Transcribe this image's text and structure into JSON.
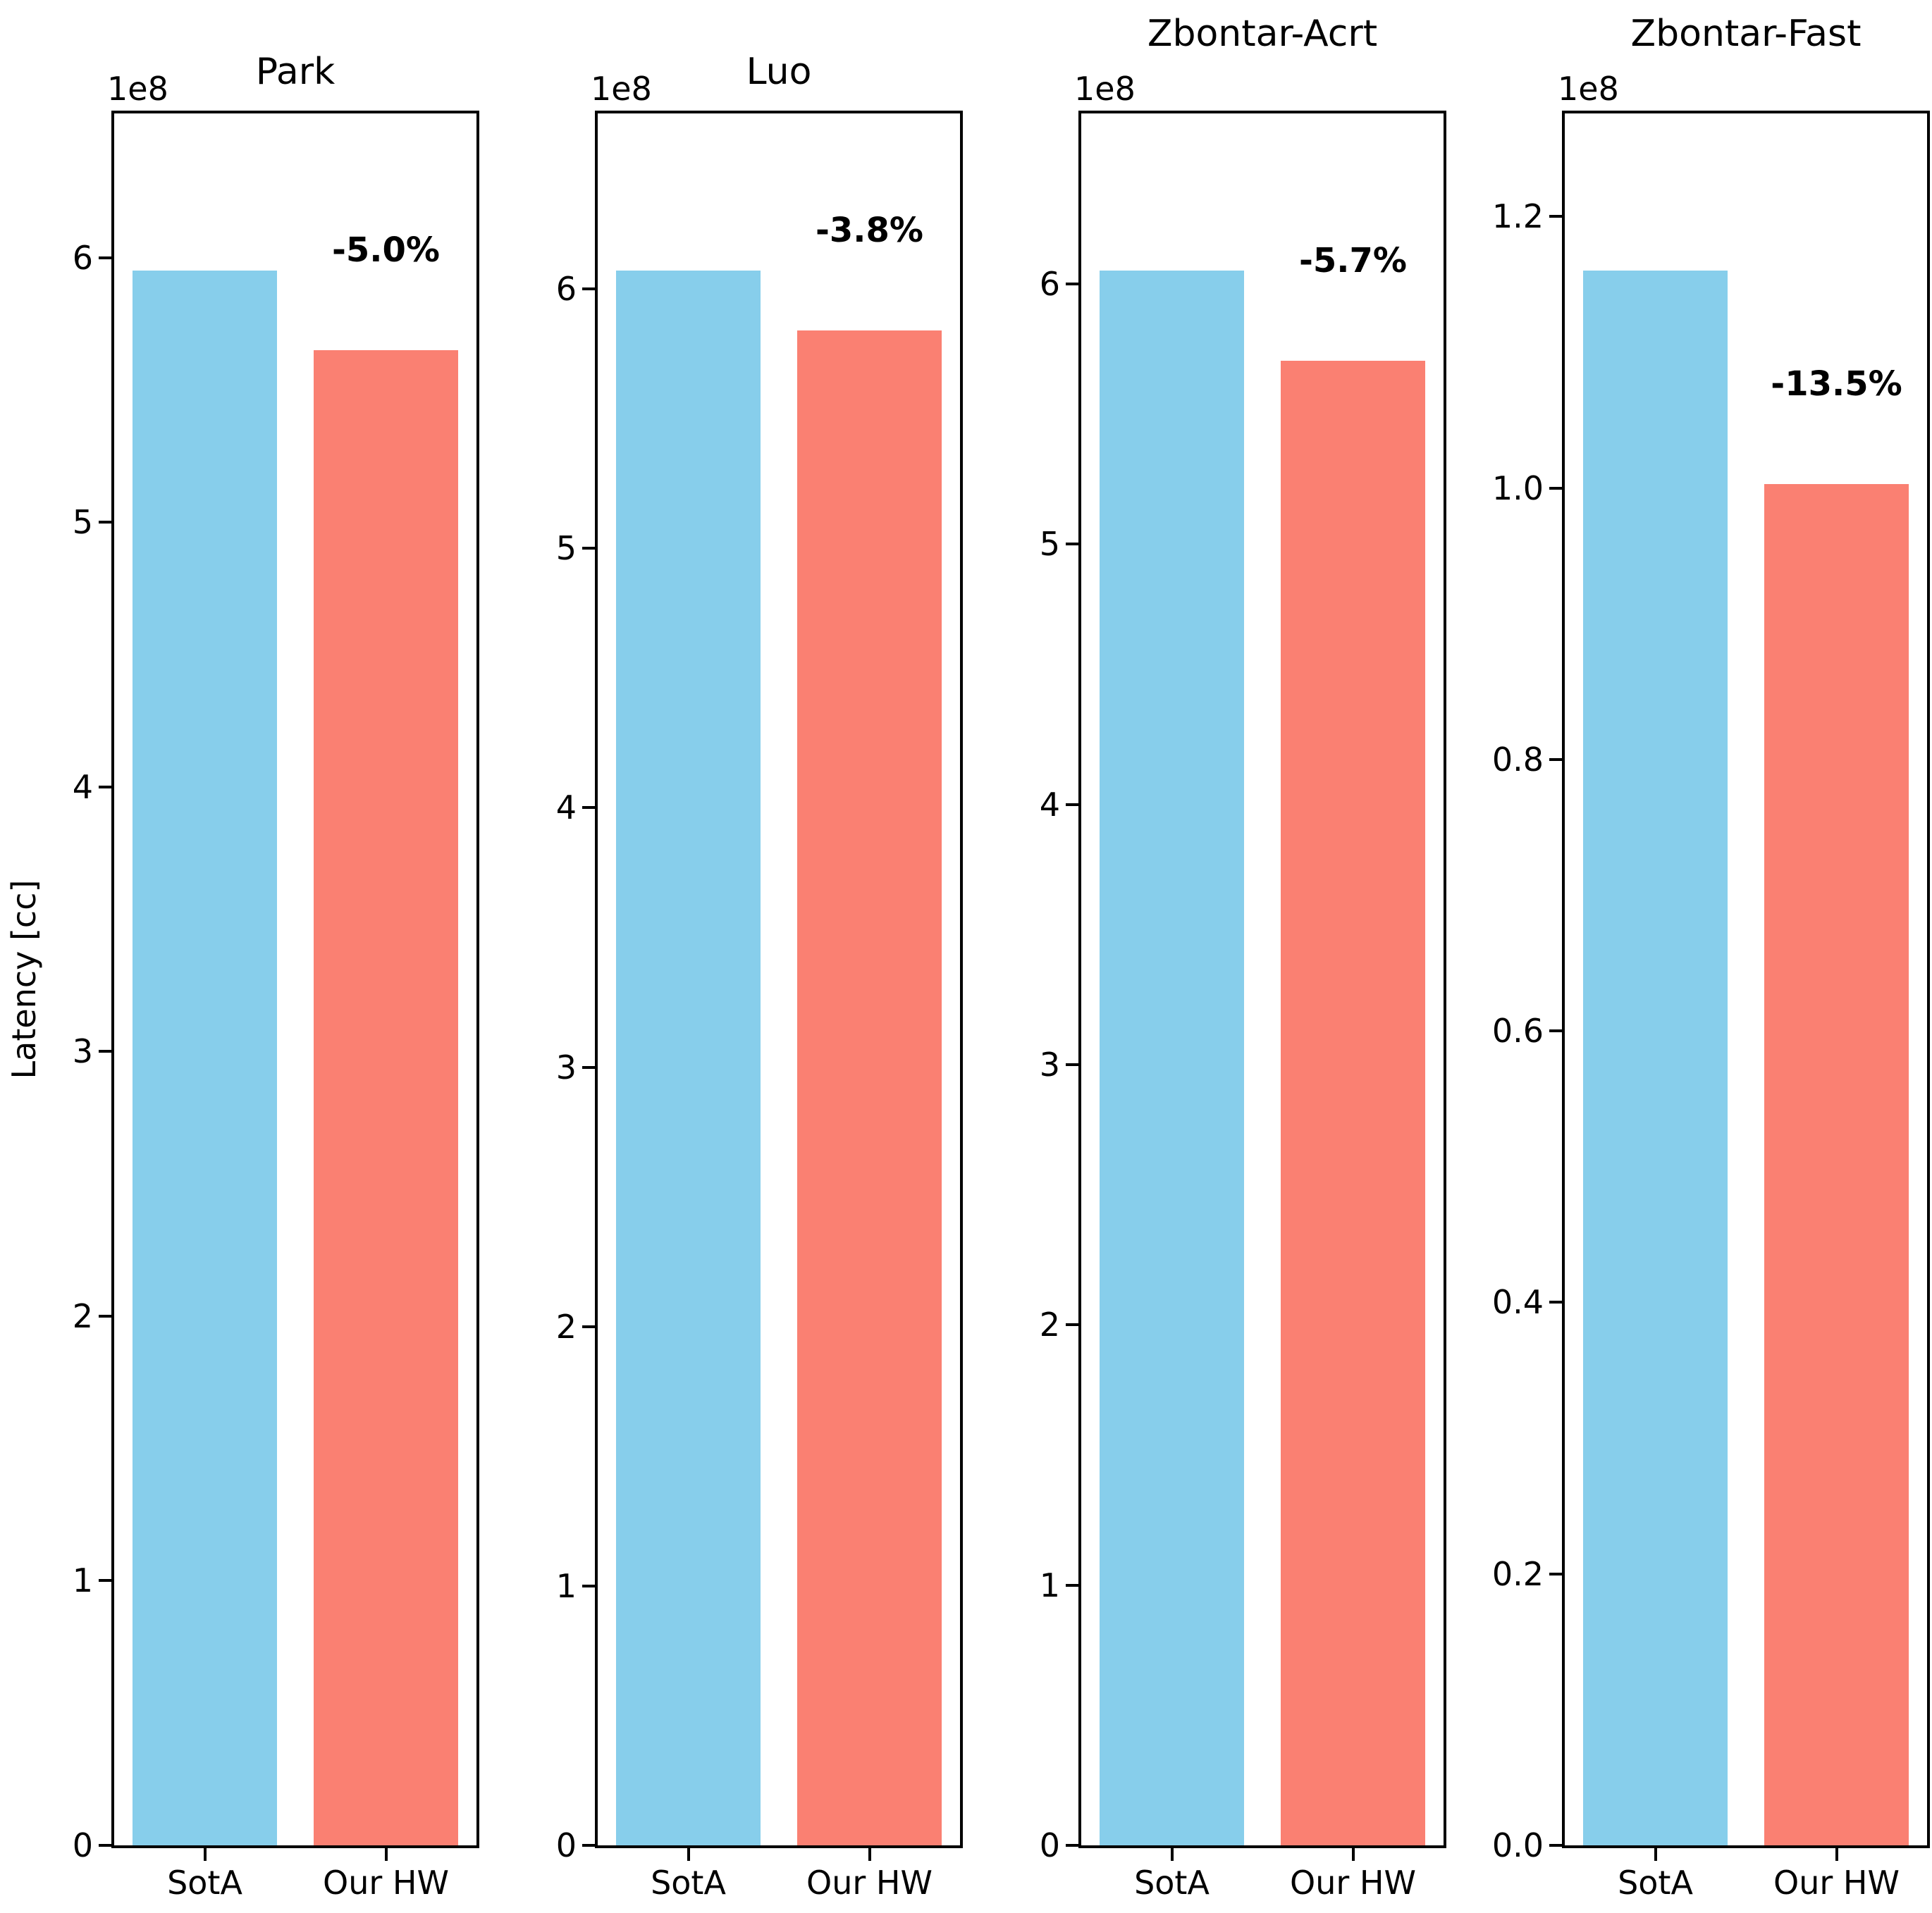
{
  "figure": {
    "ylabel": "Latency [cc]",
    "offset_label": "1e8",
    "categories": [
      "SotA",
      "Our HW"
    ],
    "bar_colors": [
      "#87CEEB",
      "#FA8072"
    ],
    "spine_color": "#000000"
  },
  "chart_data": [
    {
      "type": "bar",
      "title": "Park",
      "title_raised": false,
      "categories": [
        "SotA",
        "Our HW"
      ],
      "values": [
        595000000,
        565000000
      ],
      "annotation": "-5.0%",
      "xlabel": "",
      "ylabel": "Latency [cc]",
      "ylim": [
        0,
        654500000
      ],
      "ytick_values": [
        0,
        100000000,
        200000000,
        300000000,
        400000000,
        500000000,
        600000000
      ],
      "ytick_labels": [
        "0",
        "1",
        "2",
        "3",
        "4",
        "5",
        "6"
      ],
      "offset_text": "1e8",
      "grid": false,
      "legend": false
    },
    {
      "type": "bar",
      "title": "Luo",
      "title_raised": false,
      "categories": [
        "SotA",
        "Our HW"
      ],
      "values": [
        607000000,
        584000000
      ],
      "annotation": "-3.8%",
      "xlabel": "",
      "ylabel": "",
      "ylim": [
        0,
        667700000
      ],
      "ytick_values": [
        0,
        100000000,
        200000000,
        300000000,
        400000000,
        500000000,
        600000000
      ],
      "ytick_labels": [
        "0",
        "1",
        "2",
        "3",
        "4",
        "5",
        "6"
      ],
      "offset_text": "1e8",
      "grid": false,
      "legend": false
    },
    {
      "type": "bar",
      "title": "Zbontar-Acrt",
      "title_raised": true,
      "categories": [
        "SotA",
        "Our HW"
      ],
      "values": [
        605000000,
        570500000
      ],
      "annotation": "-5.7%",
      "xlabel": "",
      "ylabel": "",
      "ylim": [
        0,
        665500000
      ],
      "ytick_values": [
        0,
        100000000,
        200000000,
        300000000,
        400000000,
        500000000,
        600000000
      ],
      "ytick_labels": [
        "0",
        "1",
        "2",
        "3",
        "4",
        "5",
        "6"
      ],
      "offset_text": "1e8",
      "grid": false,
      "legend": false
    },
    {
      "type": "bar",
      "title": "Zbontar-Fast",
      "title_raised": true,
      "categories": [
        "SotA",
        "Our HW"
      ],
      "values": [
        116000000,
        100300000
      ],
      "annotation": "-13.5%",
      "xlabel": "",
      "ylabel": "",
      "ylim": [
        0,
        127600000
      ],
      "ytick_values": [
        0,
        20000000,
        40000000,
        60000000,
        80000000,
        100000000,
        120000000
      ],
      "ytick_labels": [
        "0.0",
        "0.2",
        "0.4",
        "0.6",
        "0.8",
        "1.0",
        "1.2"
      ],
      "offset_text": "1e8",
      "grid": false,
      "legend": false
    }
  ]
}
